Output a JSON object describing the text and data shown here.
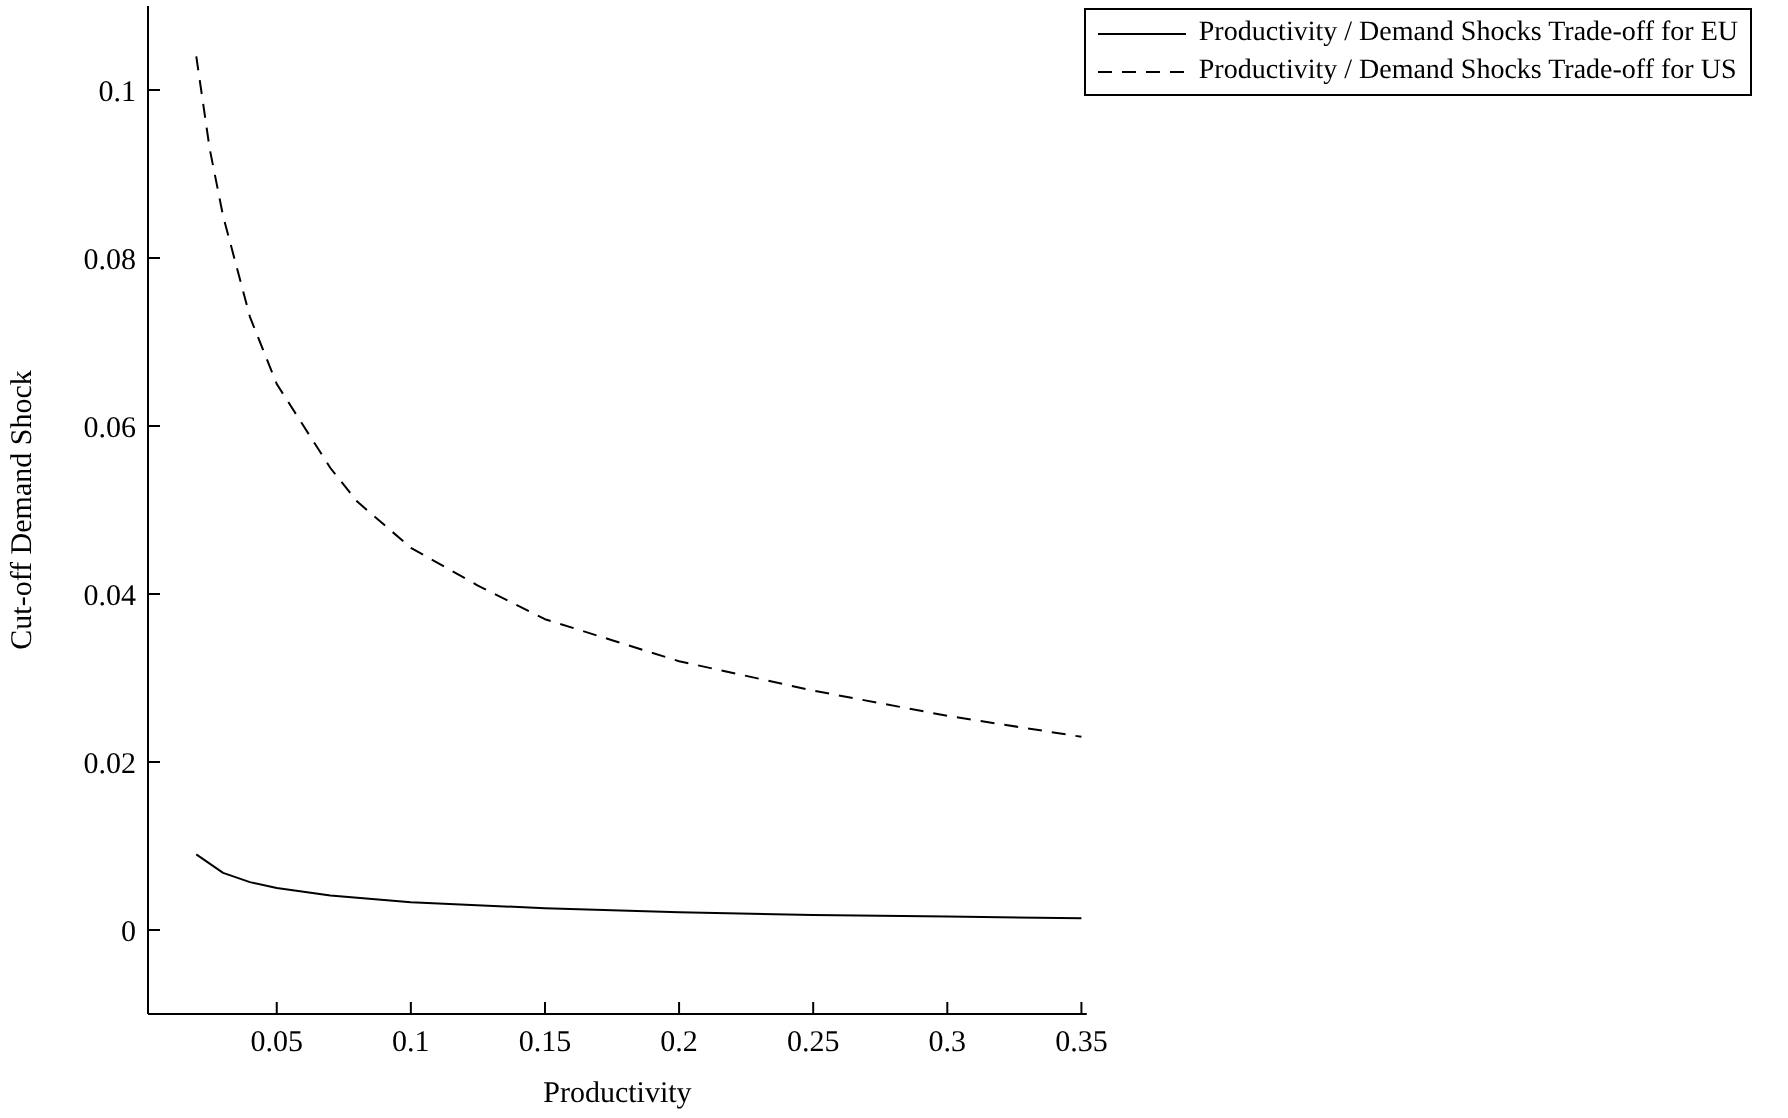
{
  "chart_data": {
    "type": "line",
    "xlabel": "Productivity",
    "ylabel": "Cut-off Demand Shock",
    "xlim": [
      0.002,
      0.352
    ],
    "xticks": [
      0.05,
      0.1,
      0.15,
      0.2,
      0.25,
      0.3,
      0.35
    ],
    "ylim": [
      -0.01,
      0.11
    ],
    "yticks": [
      0,
      0.02,
      0.04,
      0.06,
      0.08,
      0.1
    ],
    "legend": "top right",
    "grid": false,
    "marker": "none",
    "series": [
      {
        "name": "Productivity / Demand Shocks Trade-off for EU",
        "color": "#000000",
        "line_style": "solid",
        "x": [
          0.02,
          0.03,
          0.04,
          0.05,
          0.07,
          0.1,
          0.15,
          0.2,
          0.25,
          0.3,
          0.35
        ],
        "values": [
          0.009,
          0.0068,
          0.0057,
          0.005,
          0.0041,
          0.0033,
          0.0026,
          0.0021,
          0.0018,
          0.0016,
          0.0014
        ]
      },
      {
        "name": "Productivity / Demand Shocks Trade-off for US",
        "color": "#000000",
        "line_style": "dashed",
        "x": [
          0.02,
          0.025,
          0.03,
          0.04,
          0.05,
          0.06,
          0.07,
          0.08,
          0.1,
          0.125,
          0.15,
          0.175,
          0.2,
          0.25,
          0.3,
          0.35
        ],
        "values": [
          0.104,
          0.093,
          0.085,
          0.073,
          0.065,
          0.06,
          0.055,
          0.051,
          0.0455,
          0.041,
          0.037,
          0.0345,
          0.032,
          0.0285,
          0.0255,
          0.023
        ]
      }
    ]
  }
}
